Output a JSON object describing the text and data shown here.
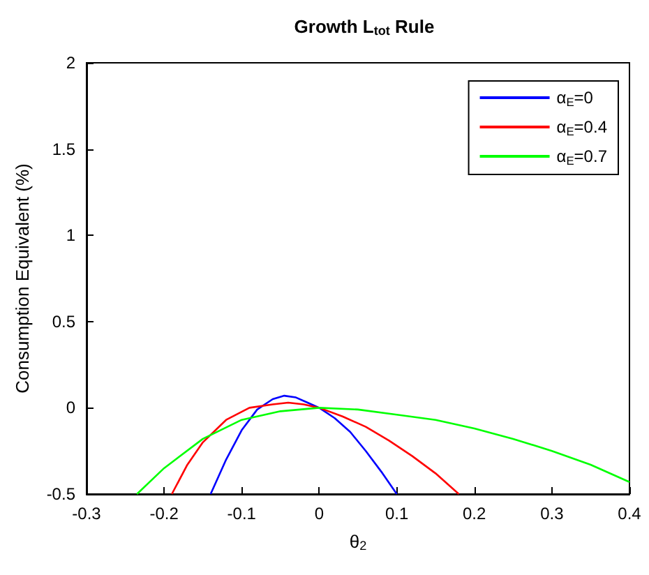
{
  "chart_data": {
    "type": "line",
    "title": "Growth L$_{tot}$ Rule",
    "xlabel": "θ$_{2}$",
    "ylabel": "Consumption Equivalent (%)",
    "xlim": [
      -0.3,
      0.4
    ],
    "xticks": [
      -0.3,
      -0.2,
      -0.1,
      0,
      0.1,
      0.2,
      0.3,
      0.4
    ],
    "ylim": [
      -0.5,
      2
    ],
    "yticks": [
      -0.5,
      0,
      0.5,
      1,
      1.5,
      2
    ],
    "grid": false,
    "legend": "top right",
    "marker": "none",
    "line_style": "solid",
    "series": [
      {
        "name": "α$_{E}$=0",
        "color": "#0000ff",
        "x": [
          -0.14,
          -0.12,
          -0.1,
          -0.08,
          -0.06,
          -0.045,
          -0.03,
          -0.015,
          0,
          0.02,
          0.04,
          0.06,
          0.08,
          0.1
        ],
        "values": [
          -0.5,
          -0.3,
          -0.13,
          -0.01,
          0.05,
          0.07,
          0.06,
          0.03,
          0,
          -0.06,
          -0.14,
          -0.25,
          -0.37,
          -0.5
        ]
      },
      {
        "name": "α$_{E}$=0.4",
        "color": "#ff0000",
        "x": [
          -0.19,
          -0.17,
          -0.15,
          -0.12,
          -0.09,
          -0.06,
          -0.04,
          -0.02,
          0,
          0.03,
          0.06,
          0.09,
          0.12,
          0.15,
          0.18
        ],
        "values": [
          -0.5,
          -0.33,
          -0.2,
          -0.07,
          0,
          0.02,
          0.03,
          0.02,
          0,
          -0.05,
          -0.11,
          -0.19,
          -0.28,
          -0.38,
          -0.5
        ]
      },
      {
        "name": "α$_{E}$=0.7",
        "color": "#00ff00",
        "x": [
          -0.235,
          -0.2,
          -0.15,
          -0.1,
          -0.05,
          0,
          0.05,
          0.1,
          0.15,
          0.2,
          0.25,
          0.3,
          0.35,
          0.4
        ],
        "values": [
          -0.5,
          -0.35,
          -0.18,
          -0.07,
          -0.02,
          0,
          -0.01,
          -0.04,
          -0.07,
          -0.12,
          -0.18,
          -0.25,
          -0.33,
          -0.43
        ]
      }
    ]
  }
}
